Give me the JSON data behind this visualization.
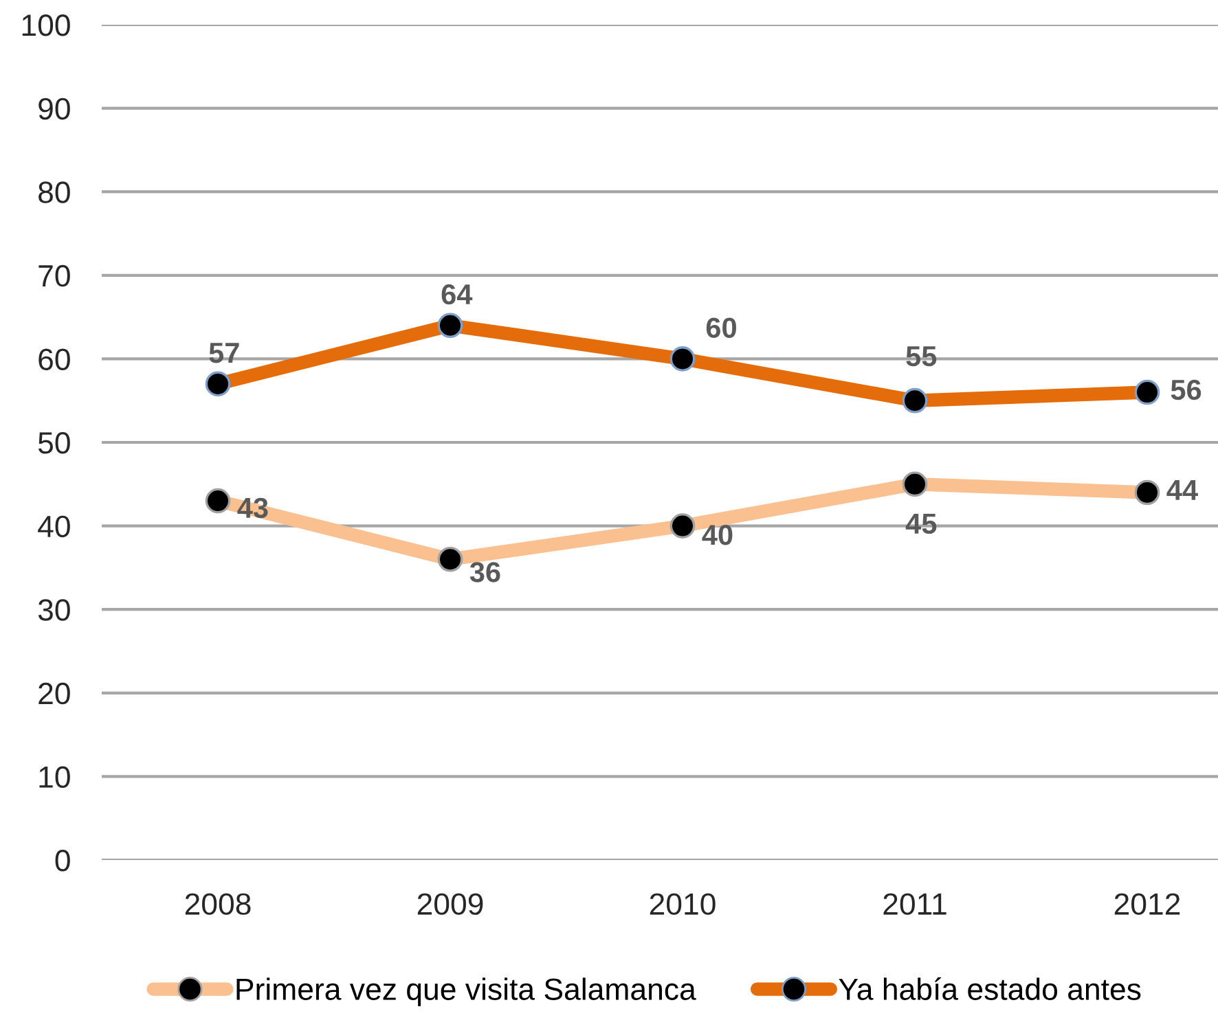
{
  "chart_data": {
    "type": "line",
    "categories": [
      "2008",
      "2009",
      "2010",
      "2011",
      "2012"
    ],
    "series": [
      {
        "name": "Primera vez que visita Salamanca",
        "color": "#fac090",
        "values": [
          43,
          36,
          40,
          45,
          44
        ]
      },
      {
        "name": "Ya había estado antes",
        "color": "#e46c0a",
        "values": [
          57,
          64,
          60,
          55,
          56
        ]
      }
    ],
    "ylim": [
      0,
      100
    ],
    "yticks": [
      0,
      10,
      20,
      30,
      40,
      50,
      60,
      70,
      80,
      90,
      100
    ],
    "grid": "y",
    "legend": "bottom",
    "marker": "circle",
    "line_style": "solid",
    "data_labels": true
  }
}
